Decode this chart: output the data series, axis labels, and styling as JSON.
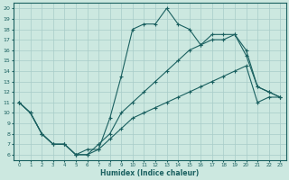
{
  "xlabel": "Humidex (Indice chaleur)",
  "xlim": [
    -0.5,
    23.5
  ],
  "ylim": [
    5.5,
    20.5
  ],
  "xticks": [
    0,
    1,
    2,
    3,
    4,
    5,
    6,
    7,
    8,
    9,
    10,
    11,
    12,
    13,
    14,
    15,
    16,
    17,
    18,
    19,
    20,
    21,
    22,
    23
  ],
  "yticks": [
    6,
    7,
    8,
    9,
    10,
    11,
    12,
    13,
    14,
    15,
    16,
    17,
    18,
    19,
    20
  ],
  "background_color": "#cce8e0",
  "grid_color": "#a8ccc8",
  "line_color": "#1a6060",
  "line1_x": [
    0,
    1,
    2,
    3,
    4,
    5,
    6,
    7,
    8,
    9,
    10,
    11,
    12,
    13,
    14,
    15,
    16,
    17,
    18,
    19,
    20,
    21,
    22,
    23
  ],
  "line1_y": [
    11,
    10,
    8,
    7,
    7,
    6,
    6,
    6.5,
    9.5,
    13.5,
    18,
    18.5,
    18.5,
    20,
    18.5,
    18,
    16.5,
    17.5,
    17.5,
    17.5,
    16,
    12.5,
    12,
    11.5
  ],
  "line2_x": [
    0,
    1,
    2,
    3,
    4,
    5,
    6,
    7,
    8,
    9,
    10,
    11,
    12,
    13,
    14,
    15,
    16,
    17,
    18,
    19,
    20,
    21,
    22,
    23
  ],
  "line2_y": [
    11,
    10,
    8,
    7,
    7,
    6,
    6,
    7,
    8,
    10,
    11,
    12,
    13,
    14,
    15,
    16,
    16.5,
    17,
    17,
    17.5,
    15.5,
    12.5,
    12,
    11.5
  ],
  "line3_x": [
    0,
    1,
    2,
    3,
    4,
    5,
    6,
    7,
    8,
    9,
    10,
    11,
    12,
    13,
    14,
    15,
    16,
    17,
    18,
    19,
    20,
    21,
    22,
    23
  ],
  "line3_y": [
    11,
    10,
    8,
    7,
    7,
    6,
    6.5,
    6.5,
    7.5,
    8.5,
    9.5,
    10,
    10.5,
    11,
    11.5,
    12,
    12.5,
    13,
    13.5,
    14,
    14.5,
    11,
    11.5,
    11.5
  ],
  "marker": "+",
  "markersize": 3.0,
  "linewidth": 0.8
}
